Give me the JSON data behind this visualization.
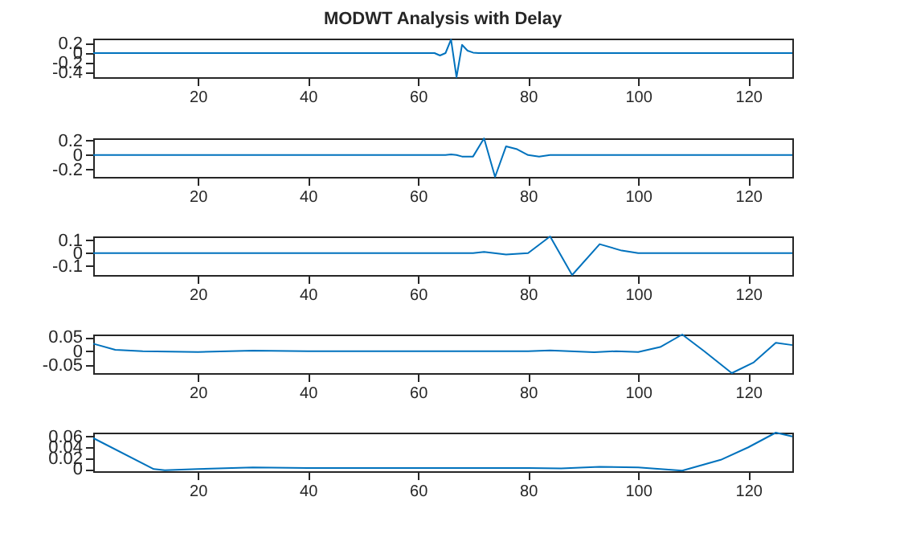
{
  "chart_data": [
    {
      "type": "line",
      "title": "MODWT Analysis with Delay",
      "color": "#0072bd",
      "x": [
        1,
        63,
        64,
        65,
        66,
        67,
        68,
        69,
        70,
        71,
        128
      ],
      "values": [
        0,
        0,
        -0.05,
        0,
        0.28,
        -0.5,
        0.17,
        0.05,
        0.01,
        0,
        0
      ],
      "xlim": [
        1,
        128
      ],
      "xticks": [
        20,
        40,
        60,
        80,
        100,
        120
      ],
      "ylim": [
        -0.5,
        0.3
      ],
      "yticks": [
        -0.4,
        -0.2,
        0,
        0.2
      ],
      "grid": false
    },
    {
      "type": "line",
      "color": "#0072bd",
      "x": [
        1,
        65,
        66,
        67,
        68,
        70,
        72,
        74,
        76,
        78,
        80,
        82,
        84,
        128
      ],
      "values": [
        0,
        0,
        0.01,
        0,
        -0.02,
        -0.02,
        0.23,
        -0.3,
        0.12,
        0.08,
        0.0,
        -0.02,
        0,
        0
      ],
      "xlim": [
        1,
        128
      ],
      "xticks": [
        20,
        40,
        60,
        80,
        100,
        120
      ],
      "ylim": [
        -0.3,
        0.23
      ],
      "yticks": [
        -0.2,
        0,
        0.2
      ],
      "grid": false
    },
    {
      "type": "line",
      "color": "#0072bd",
      "x": [
        1,
        70,
        72,
        76,
        80,
        84,
        88,
        93,
        97,
        100,
        128
      ],
      "values": [
        0,
        0,
        0.01,
        -0.01,
        0,
        0.13,
        -0.17,
        0.07,
        0.02,
        0,
        0
      ],
      "xlim": [
        1,
        128
      ],
      "xticks": [
        20,
        40,
        60,
        80,
        100,
        120
      ],
      "ylim": [
        -0.17,
        0.13
      ],
      "yticks": [
        -0.1,
        0,
        0.1
      ],
      "grid": false
    },
    {
      "type": "line",
      "color": "#0072bd",
      "x": [
        1,
        5,
        10,
        20,
        30,
        40,
        80,
        84,
        92,
        96,
        100,
        104,
        108,
        112,
        117,
        121,
        125,
        128
      ],
      "values": [
        0.027,
        0.005,
        0,
        -0.003,
        0.002,
        0,
        0,
        0.003,
        -0.004,
        0,
        -0.003,
        0.015,
        0.06,
        0,
        -0.079,
        -0.04,
        0.03,
        0.022
      ],
      "xlim": [
        1,
        128
      ],
      "xticks": [
        20,
        40,
        60,
        80,
        100,
        120
      ],
      "ylim": [
        -0.079,
        0.06
      ],
      "yticks": [
        -0.05,
        0,
        0.05
      ],
      "grid": false
    },
    {
      "type": "line",
      "color": "#0072bd",
      "x": [
        1,
        12,
        14,
        20,
        30,
        40,
        80,
        86,
        93,
        100,
        108,
        115,
        120,
        125,
        128
      ],
      "values": [
        0.057,
        0,
        -0.002,
        0,
        0.003,
        0.002,
        0.002,
        0.001,
        0.004,
        0.003,
        -0.003,
        0.017,
        0.04,
        0.067,
        0.06
      ],
      "xlim": [
        1,
        128
      ],
      "xticks": [
        20,
        40,
        60,
        80,
        100,
        120
      ],
      "ylim": [
        -0.004,
        0.067
      ],
      "yticks": [
        0,
        0.02,
        0.04,
        0.06
      ],
      "grid": false
    }
  ]
}
